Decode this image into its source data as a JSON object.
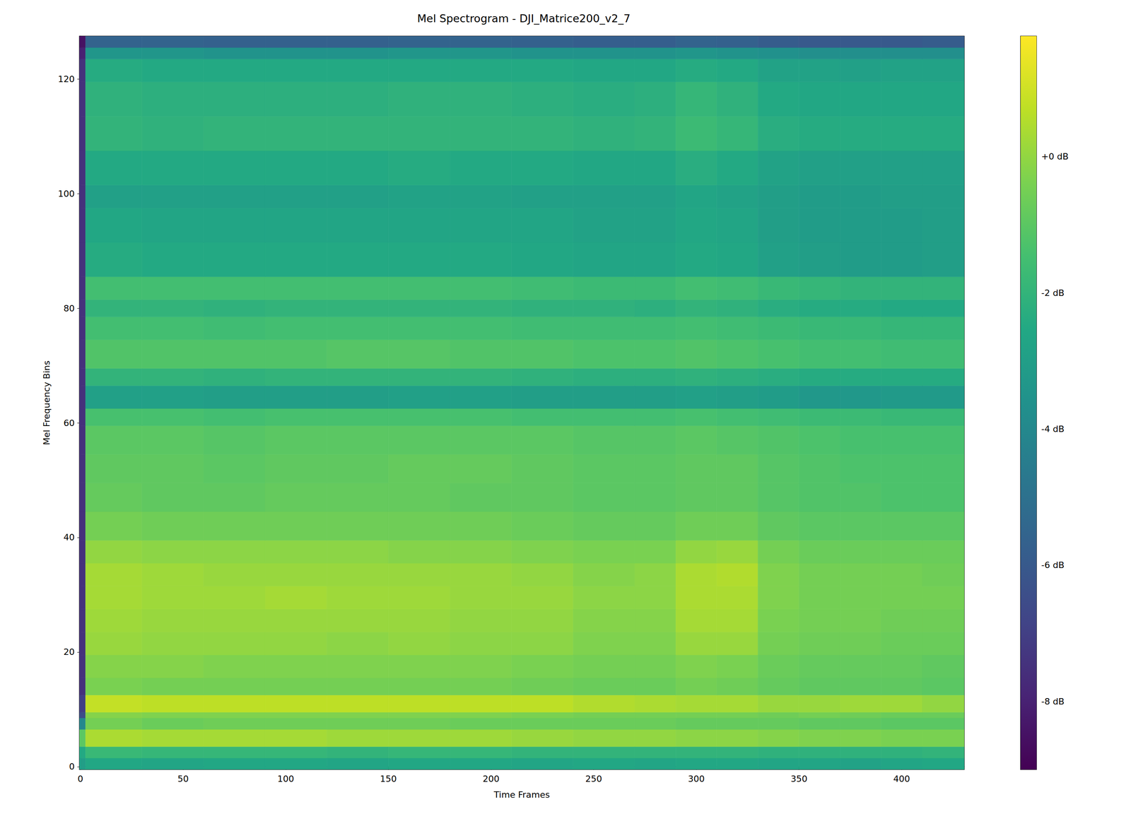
{
  "chart_data": {
    "type": "heatmap",
    "title": "Mel Spectrogram - DJI_Matrice200_v2_7",
    "x_label": "Time Frames",
    "y_label": "Mel Frequency Bins",
    "color": "viridis",
    "xlim": [
      -0.5,
      430.5
    ],
    "ylim": [
      -0.5,
      127.5
    ],
    "xticks": [
      0,
      50,
      100,
      150,
      200,
      250,
      300,
      350,
      400
    ],
    "yticks": [
      0,
      20,
      40,
      60,
      80,
      100,
      120
    ],
    "x_edges": [
      -0.5,
      2.5,
      30,
      60,
      90,
      120,
      150,
      180,
      210,
      240,
      270,
      290,
      310,
      330,
      350,
      370,
      390,
      410,
      430.5
    ],
    "y_edges": [
      -0.5,
      1.5,
      3.5,
      6.5,
      8.5,
      9.5,
      12.5,
      15.5,
      19.5,
      23.5,
      27.5,
      31.5,
      35.5,
      39.5,
      44.5,
      49.5,
      54.5,
      59.5,
      62.5,
      66.5,
      69.5,
      74.5,
      78.5,
      81.5,
      85.5,
      91.5,
      97.5,
      101.5,
      107.5,
      113.5,
      119.5,
      123.5,
      125.5,
      127.5
    ],
    "cells": [
      [
        -3.0,
        -2.6,
        -2.7,
        -2.6,
        -2.6,
        -2.7,
        -2.6,
        -2.6,
        -2.7,
        -2.6,
        -2.7,
        -2.6,
        -2.6,
        -2.7,
        -2.7,
        -2.8,
        -2.7,
        -2.6
      ],
      [
        -2.5,
        -1.8,
        -1.9,
        -1.9,
        -1.9,
        -2.0,
        -1.9,
        -1.9,
        -2.0,
        -2.0,
        -2.0,
        -2.0,
        -2.0,
        -2.1,
        -2.1,
        -2.1,
        -2.1,
        -2.0
      ],
      [
        -1.0,
        0.4,
        0.3,
        0.3,
        0.3,
        0.2,
        0.2,
        0.2,
        0.1,
        0.0,
        0.0,
        -0.1,
        -0.1,
        -0.2,
        -0.3,
        -0.3,
        -0.4,
        -0.4
      ],
      [
        -4.0,
        -0.5,
        -0.7,
        -0.6,
        -0.6,
        -0.6,
        -0.6,
        -0.7,
        -0.7,
        -0.7,
        -0.7,
        -0.8,
        -0.8,
        -0.8,
        -0.9,
        -0.9,
        -1.0,
        -1.0
      ],
      [
        -6.5,
        -0.2,
        -0.3,
        -0.3,
        -0.3,
        -0.3,
        -0.3,
        -0.3,
        -0.4,
        -0.5,
        -0.5,
        -0.5,
        -0.5,
        -0.6,
        -0.5,
        -0.6,
        -0.7,
        -0.7
      ],
      [
        -7.0,
        0.8,
        0.7,
        0.7,
        0.7,
        0.7,
        0.7,
        0.7,
        0.7,
        0.5,
        0.4,
        0.3,
        0.3,
        0.1,
        0.1,
        0.2,
        0.2,
        0.0
      ],
      [
        -7.5,
        -0.4,
        -0.5,
        -0.5,
        -0.5,
        -0.5,
        -0.5,
        -0.5,
        -0.6,
        -0.7,
        -0.7,
        -0.5,
        -0.6,
        -0.8,
        -0.9,
        -0.9,
        -0.9,
        -1.0
      ],
      [
        -7.5,
        -0.2,
        -0.2,
        -0.3,
        -0.3,
        -0.3,
        -0.3,
        -0.3,
        -0.4,
        -0.5,
        -0.5,
        -0.3,
        -0.4,
        -0.7,
        -0.8,
        -0.8,
        -0.8,
        -0.9
      ],
      [
        -7.5,
        0.1,
        0.0,
        0.0,
        0.0,
        -0.1,
        0.0,
        -0.1,
        -0.1,
        -0.3,
        -0.3,
        0.1,
        0.1,
        -0.5,
        -0.6,
        -0.6,
        -0.7,
        -0.7
      ],
      [
        -7.5,
        0.2,
        0.1,
        0.1,
        0.1,
        0.1,
        0.1,
        0.0,
        0.0,
        -0.2,
        -0.2,
        0.3,
        0.3,
        -0.4,
        -0.5,
        -0.5,
        -0.6,
        -0.6
      ],
      [
        -7.5,
        0.3,
        0.2,
        0.2,
        0.3,
        0.2,
        0.2,
        0.1,
        0.1,
        -0.1,
        -0.1,
        0.4,
        0.4,
        -0.3,
        -0.5,
        -0.5,
        -0.5,
        -0.5
      ],
      [
        -7.5,
        0.3,
        0.2,
        0.1,
        0.1,
        0.1,
        0.1,
        0.1,
        0.0,
        -0.2,
        -0.1,
        0.4,
        0.5,
        -0.3,
        -0.5,
        -0.5,
        -0.5,
        -0.6
      ],
      [
        -7.5,
        0.0,
        -0.1,
        -0.1,
        -0.1,
        -0.1,
        -0.2,
        -0.2,
        -0.3,
        -0.4,
        -0.4,
        0.0,
        0.1,
        -0.5,
        -0.7,
        -0.7,
        -0.7,
        -0.7
      ],
      [
        -7.5,
        -0.5,
        -0.6,
        -0.6,
        -0.6,
        -0.6,
        -0.6,
        -0.6,
        -0.7,
        -0.8,
        -0.8,
        -0.6,
        -0.6,
        -0.9,
        -1.0,
        -1.0,
        -1.0,
        -1.0
      ],
      [
        -7.5,
        -0.8,
        -0.9,
        -0.9,
        -0.8,
        -0.8,
        -0.8,
        -0.9,
        -0.9,
        -1.0,
        -1.0,
        -0.9,
        -0.9,
        -1.1,
        -1.2,
        -1.2,
        -1.3,
        -1.3
      ],
      [
        -7.5,
        -0.9,
        -0.9,
        -1.0,
        -0.9,
        -0.9,
        -0.8,
        -0.8,
        -0.9,
        -1.0,
        -1.0,
        -0.9,
        -0.9,
        -1.1,
        -1.2,
        -1.3,
        -1.3,
        -1.3
      ],
      [
        -7.5,
        -1.0,
        -1.0,
        -1.1,
        -1.0,
        -1.0,
        -1.0,
        -1.0,
        -1.0,
        -1.1,
        -1.1,
        -1.0,
        -1.1,
        -1.2,
        -1.3,
        -1.4,
        -1.4,
        -1.4
      ],
      [
        -7.5,
        -1.4,
        -1.4,
        -1.5,
        -1.4,
        -1.4,
        -1.4,
        -1.4,
        -1.5,
        -1.5,
        -1.5,
        -1.4,
        -1.5,
        -1.6,
        -1.7,
        -1.7,
        -1.8,
        -1.8
      ],
      [
        -7.5,
        -2.9,
        -2.9,
        -3.0,
        -3.0,
        -3.0,
        -2.9,
        -2.9,
        -3.0,
        -3.0,
        -3.0,
        -2.9,
        -3.0,
        -3.1,
        -3.3,
        -3.3,
        -3.2,
        -3.2
      ],
      [
        -7.5,
        -2.0,
        -2.0,
        -2.1,
        -2.0,
        -2.0,
        -2.0,
        -2.0,
        -2.1,
        -2.2,
        -2.2,
        -2.1,
        -2.2,
        -2.3,
        -2.4,
        -2.4,
        -2.4,
        -2.4
      ],
      [
        -7.5,
        -1.2,
        -1.2,
        -1.2,
        -1.2,
        -1.1,
        -1.1,
        -1.2,
        -1.2,
        -1.3,
        -1.3,
        -1.2,
        -1.3,
        -1.4,
        -1.5,
        -1.5,
        -1.6,
        -1.6
      ],
      [
        -7.5,
        -1.5,
        -1.5,
        -1.6,
        -1.5,
        -1.5,
        -1.5,
        -1.5,
        -1.6,
        -1.6,
        -1.6,
        -1.5,
        -1.6,
        -1.7,
        -1.8,
        -1.8,
        -1.9,
        -1.9
      ],
      [
        -7.5,
        -2.0,
        -2.0,
        -2.1,
        -2.0,
        -2.0,
        -2.0,
        -2.0,
        -2.1,
        -2.1,
        -2.2,
        -2.0,
        -2.1,
        -2.3,
        -2.4,
        -2.4,
        -2.5,
        -2.5
      ],
      [
        -7.5,
        -1.5,
        -1.5,
        -1.5,
        -1.5,
        -1.5,
        -1.5,
        -1.5,
        -1.6,
        -1.7,
        -1.7,
        -1.5,
        -1.6,
        -1.8,
        -1.9,
        -2.0,
        -2.0,
        -2.0
      ],
      [
        -7.5,
        -2.4,
        -2.5,
        -2.5,
        -2.5,
        -2.5,
        -2.5,
        -2.5,
        -2.6,
        -2.7,
        -2.7,
        -2.5,
        -2.6,
        -2.9,
        -3.0,
        -3.1,
        -3.1,
        -3.0
      ],
      [
        -7.5,
        -2.6,
        -2.7,
        -2.7,
        -2.7,
        -2.7,
        -2.7,
        -2.7,
        -2.7,
        -2.8,
        -2.8,
        -2.6,
        -2.7,
        -3.0,
        -3.1,
        -3.1,
        -3.1,
        -3.0
      ],
      [
        -7.5,
        -2.9,
        -2.9,
        -2.9,
        -2.9,
        -2.9,
        -2.8,
        -2.8,
        -2.9,
        -2.9,
        -2.9,
        -2.7,
        -2.8,
        -3.0,
        -3.1,
        -3.1,
        -3.0,
        -3.0
      ],
      [
        -7.5,
        -2.5,
        -2.5,
        -2.5,
        -2.5,
        -2.5,
        -2.4,
        -2.5,
        -2.5,
        -2.6,
        -2.6,
        -2.3,
        -2.5,
        -2.8,
        -2.9,
        -2.9,
        -2.9,
        -2.9
      ],
      [
        -7.5,
        -2.0,
        -2.1,
        -2.0,
        -2.0,
        -2.0,
        -2.0,
        -2.0,
        -2.0,
        -2.1,
        -2.0,
        -1.7,
        -1.9,
        -2.3,
        -2.4,
        -2.4,
        -2.4,
        -2.4
      ],
      [
        -7.5,
        -2.1,
        -2.2,
        -2.2,
        -2.2,
        -2.2,
        -2.1,
        -2.1,
        -2.2,
        -2.3,
        -2.2,
        -1.9,
        -2.1,
        -2.5,
        -2.6,
        -2.6,
        -2.6,
        -2.6
      ],
      [
        -7.5,
        -2.4,
        -2.5,
        -2.5,
        -2.5,
        -2.5,
        -2.5,
        -2.5,
        -2.5,
        -2.6,
        -2.6,
        -2.4,
        -2.5,
        -2.8,
        -2.8,
        -2.9,
        -2.8,
        -2.8
      ],
      [
        -8.0,
        -3.4,
        -3.4,
        -3.5,
        -3.5,
        -3.5,
        -3.4,
        -3.4,
        -3.5,
        -3.5,
        -3.5,
        -3.4,
        -3.5,
        -3.6,
        -3.7,
        -3.7,
        -3.7,
        -3.7
      ],
      [
        -8.5,
        -5.6,
        -5.6,
        -5.7,
        -5.7,
        -5.7,
        -5.6,
        -5.6,
        -5.7,
        -5.8,
        -5.8,
        -5.6,
        -5.7,
        -5.9,
        -6.0,
        -6.0,
        -6.0,
        -5.9
      ]
    ],
    "colorbar": {
      "range": [
        -9.0,
        1.77
      ],
      "ticks": [
        {
          "value": 0,
          "label": "+0 dB"
        },
        {
          "value": -2,
          "label": "-2 dB"
        },
        {
          "value": -4,
          "label": "-4 dB"
        },
        {
          "value": -6,
          "label": "-6 dB"
        },
        {
          "value": -8,
          "label": "-8 dB"
        }
      ]
    }
  }
}
